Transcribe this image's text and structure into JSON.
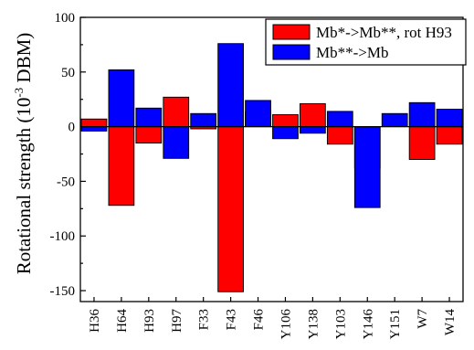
{
  "chart_data": {
    "type": "bar",
    "categories": [
      "H36",
      "H64",
      "H93",
      "H97",
      "F33",
      "F43",
      "F46",
      "Y106",
      "Y138",
      "Y103",
      "Y146",
      "Y151",
      "W7",
      "W14"
    ],
    "series": [
      {
        "name": "Mb*->Mb**, rot H93",
        "color": "#ff0000",
        "values": [
          7,
          -72,
          -15,
          27,
          -2,
          -151,
          14,
          11,
          21,
          -16,
          -38,
          0,
          -30,
          -16
        ]
      },
      {
        "name": "Mb**->Mb",
        "color": "#0000ff",
        "values": [
          -4,
          52,
          17,
          -29,
          12,
          76,
          24,
          -11,
          -6,
          14,
          -74,
          12,
          22,
          16
        ]
      }
    ],
    "ylabel_main": "Rotational strength (10",
    "ylabel_sup": "-3",
    "ylabel_end": " DBM)",
    "ylim": [
      -160,
      100
    ],
    "yticks": [
      100,
      50,
      0,
      -50,
      -100,
      -150
    ],
    "ytick_labels": [
      "100",
      "50",
      "0",
      "-50",
      "-100",
      "-150"
    ],
    "grid": false,
    "legend_position": "top-right"
  }
}
